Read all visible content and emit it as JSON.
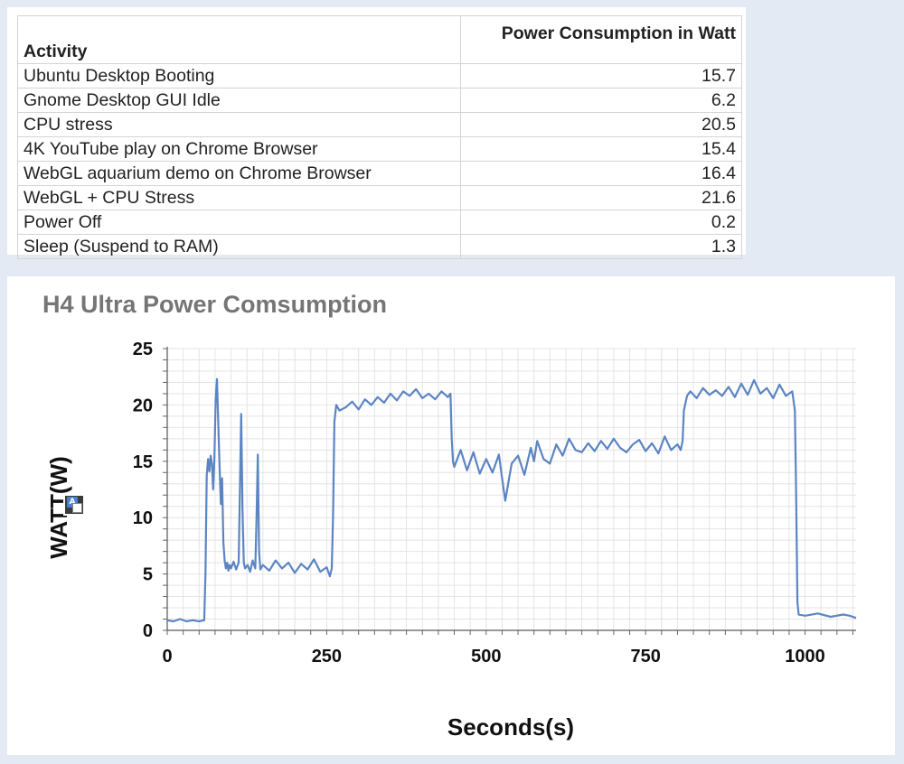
{
  "table": {
    "headers": [
      "Activity",
      "Power Consumption in Watt"
    ],
    "rows": [
      [
        "Ubuntu Desktop Booting",
        "15.7"
      ],
      [
        "Gnome Desktop GUI Idle",
        "6.2"
      ],
      [
        "CPU stress",
        "20.5"
      ],
      [
        "4K YouTube play on Chrome Browser",
        "15.4"
      ],
      [
        "WebGL aquarium demo on Chrome Browser",
        "16.4"
      ],
      [
        "WebGL + CPU Stress",
        "21.6"
      ],
      [
        "Power Off",
        "0.2"
      ],
      [
        "Sleep (Suspend to RAM)",
        "1.3"
      ]
    ]
  },
  "chart_data": {
    "type": "line",
    "title": "H4 Ultra Power Comsumption",
    "xlabel": "Seconds(s)",
    "ylabel": "WATT(W)",
    "xlim": [
      0,
      1080
    ],
    "ylim": [
      0,
      25
    ],
    "xticks": [
      0,
      250,
      500,
      750,
      1000
    ],
    "yticks": [
      0,
      5,
      10,
      15,
      20,
      25
    ],
    "grid": true,
    "line_color": "#5b85c2",
    "series": [
      {
        "x": [
          0,
          10,
          20,
          30,
          40,
          50,
          58,
          60,
          62,
          64,
          66,
          68,
          70,
          72,
          74,
          76,
          78,
          80,
          82,
          84,
          86,
          88,
          90,
          92,
          94,
          96,
          98,
          100,
          104,
          108,
          112,
          114,
          116,
          118,
          120,
          122,
          126,
          130,
          134,
          138,
          140,
          142,
          144,
          146,
          150,
          160,
          170,
          180,
          190,
          200,
          210,
          220,
          230,
          240,
          250,
          255,
          258,
          260,
          262,
          265,
          270,
          280,
          290,
          300,
          310,
          320,
          330,
          340,
          350,
          360,
          370,
          380,
          390,
          400,
          410,
          420,
          430,
          440,
          444,
          446,
          448,
          450,
          460,
          470,
          480,
          490,
          500,
          510,
          520,
          525,
          530,
          540,
          550,
          560,
          570,
          575,
          580,
          590,
          600,
          610,
          620,
          630,
          640,
          650,
          660,
          670,
          680,
          690,
          700,
          710,
          720,
          730,
          740,
          750,
          760,
          770,
          780,
          790,
          800,
          805,
          808,
          810,
          815,
          820,
          830,
          840,
          850,
          860,
          870,
          880,
          890,
          900,
          910,
          920,
          930,
          940,
          950,
          960,
          970,
          980,
          984,
          986,
          988,
          990,
          1000,
          1020,
          1040,
          1060,
          1070,
          1080
        ],
        "y": [
          0.9,
          0.8,
          1.0,
          0.8,
          0.9,
          0.8,
          0.9,
          5.0,
          13.8,
          15.2,
          14.1,
          15.5,
          14.8,
          12.5,
          15.3,
          20.5,
          22.3,
          18.5,
          14.5,
          11.2,
          13.5,
          7.8,
          6.2,
          5.5,
          6.0,
          5.3,
          5.8,
          5.5,
          6.1,
          5.4,
          6.0,
          12.5,
          19.2,
          10.5,
          6.0,
          5.5,
          5.8,
          5.2,
          6.2,
          5.5,
          10.0,
          15.6,
          7.0,
          5.4,
          5.8,
          5.3,
          6.2,
          5.5,
          6.0,
          5.1,
          5.9,
          5.4,
          6.3,
          5.2,
          5.6,
          4.8,
          5.5,
          10.0,
          18.5,
          20.0,
          19.5,
          19.8,
          20.3,
          19.6,
          20.5,
          20.0,
          20.7,
          20.2,
          21.0,
          20.4,
          21.2,
          20.8,
          21.4,
          20.6,
          21.0,
          20.5,
          21.2,
          20.7,
          21.0,
          17.0,
          15.0,
          14.5,
          16.0,
          14.2,
          15.8,
          13.9,
          15.2,
          14.0,
          15.6,
          13.5,
          11.5,
          14.8,
          15.5,
          13.8,
          16.2,
          15.0,
          16.8,
          15.2,
          14.8,
          16.5,
          15.5,
          17.0,
          16.0,
          15.8,
          16.6,
          15.9,
          16.8,
          16.1,
          17.0,
          16.2,
          15.8,
          16.5,
          16.9,
          15.9,
          16.6,
          15.7,
          17.2,
          16.0,
          16.5,
          16.0,
          16.8,
          19.5,
          20.8,
          21.2,
          20.6,
          21.5,
          20.9,
          21.3,
          20.8,
          21.6,
          20.7,
          21.9,
          20.9,
          22.2,
          21.0,
          21.5,
          20.6,
          21.8,
          20.8,
          21.2,
          19.5,
          12.0,
          2.5,
          1.4,
          1.3,
          1.5,
          1.2,
          1.4,
          1.3,
          1.1
        ]
      }
    ]
  }
}
